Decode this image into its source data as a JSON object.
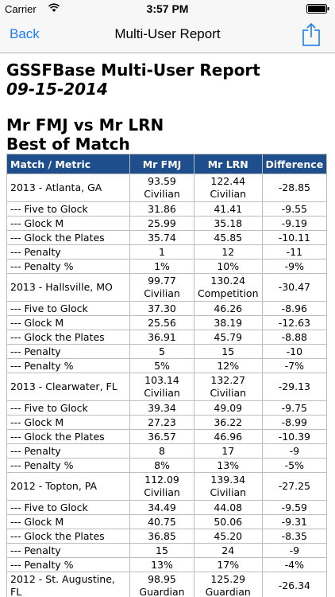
{
  "status": {
    "carrier": "Carrier",
    "time": "3:57 PM"
  },
  "nav": {
    "back": "Back",
    "title": "Multi-User Report",
    "accent": "#1a7cf5"
  },
  "report": {
    "title": "GSSFBase Multi-User Report",
    "date": "09-15-2014",
    "compare": "Mr FMJ vs Mr LRN",
    "section": "Best of Match",
    "headers": [
      "Match / Metric",
      "Mr FMJ",
      "Mr LRN",
      "Difference"
    ],
    "rows": [
      {
        "major": true,
        "c0": "2013 - Atlanta, GA",
        "c1a": "93.59",
        "c1b": "Civilian",
        "c2a": "122.44",
        "c2b": "Civilian",
        "c3": "-28.85"
      },
      {
        "c0": "--- Five to Glock",
        "c1a": "31.86",
        "c2a": "41.41",
        "c3": "-9.55"
      },
      {
        "c0": "--- Glock M",
        "c1a": "25.99",
        "c2a": "35.18",
        "c3": "-9.19"
      },
      {
        "c0": "--- Glock the Plates",
        "c1a": "35.74",
        "c2a": "45.85",
        "c3": "-10.11"
      },
      {
        "c0": "--- Penalty",
        "c1a": "1",
        "c2a": "12",
        "c3": "-11"
      },
      {
        "c0": "--- Penalty %",
        "c1a": "1%",
        "c2a": "10%",
        "c3": "-9%"
      },
      {
        "major": true,
        "c0": "2013 - Hallsville, MO",
        "c1a": "99.77",
        "c1b": "Civilian",
        "c2a": "130.24",
        "c2b": "Competition",
        "c3": "-30.47"
      },
      {
        "c0": "--- Five to Glock",
        "c1a": "37.30",
        "c2a": "46.26",
        "c3": "-8.96"
      },
      {
        "c0": "--- Glock M",
        "c1a": "25.56",
        "c2a": "38.19",
        "c3": "-12.63"
      },
      {
        "c0": "--- Glock the Plates",
        "c1a": "36.91",
        "c2a": "45.79",
        "c3": "-8.88"
      },
      {
        "c0": "--- Penalty",
        "c1a": "5",
        "c2a": "15",
        "c3": "-10"
      },
      {
        "c0": "--- Penalty %",
        "c1a": "5%",
        "c2a": "12%",
        "c3": "-7%"
      },
      {
        "major": true,
        "c0": "2013 - Clearwater, FL",
        "c1a": "103.14",
        "c1b": "Civilian",
        "c2a": "132.27",
        "c2b": "Civilian",
        "c3": "-29.13"
      },
      {
        "c0": "--- Five to Glock",
        "c1a": "39.34",
        "c2a": "49.09",
        "c3": "-9.75"
      },
      {
        "c0": "--- Glock M",
        "c1a": "27.23",
        "c2a": "36.22",
        "c3": "-8.99"
      },
      {
        "c0": "--- Glock the Plates",
        "c1a": "36.57",
        "c2a": "46.96",
        "c3": "-10.39"
      },
      {
        "c0": "--- Penalty",
        "c1a": "8",
        "c2a": "17",
        "c3": "-9"
      },
      {
        "c0": "--- Penalty %",
        "c1a": "8%",
        "c2a": "13%",
        "c3": "-5%"
      },
      {
        "major": true,
        "c0": "2012 - Topton, PA",
        "c1a": "112.09",
        "c1b": "Civilian",
        "c2a": "139.34",
        "c2b": "Civilian",
        "c3": "-27.25"
      },
      {
        "c0": "--- Five to Glock",
        "c1a": "34.49",
        "c2a": "44.08",
        "c3": "-9.59"
      },
      {
        "c0": "--- Glock M",
        "c1a": "40.75",
        "c2a": "50.06",
        "c3": "-9.31"
      },
      {
        "c0": "--- Glock the Plates",
        "c1a": "36.85",
        "c2a": "45.20",
        "c3": "-8.35"
      },
      {
        "c0": "--- Penalty",
        "c1a": "15",
        "c2a": "24",
        "c3": "-9"
      },
      {
        "c0": "--- Penalty %",
        "c1a": "13%",
        "c2a": "17%",
        "c3": "-4%"
      },
      {
        "major": true,
        "c0": "2012 - St. Augustine, FL",
        "c1a": "98.95",
        "c1b": "Guardian",
        "c2a": "125.29",
        "c2b": "Guardian",
        "c3": "-26.34"
      }
    ]
  }
}
